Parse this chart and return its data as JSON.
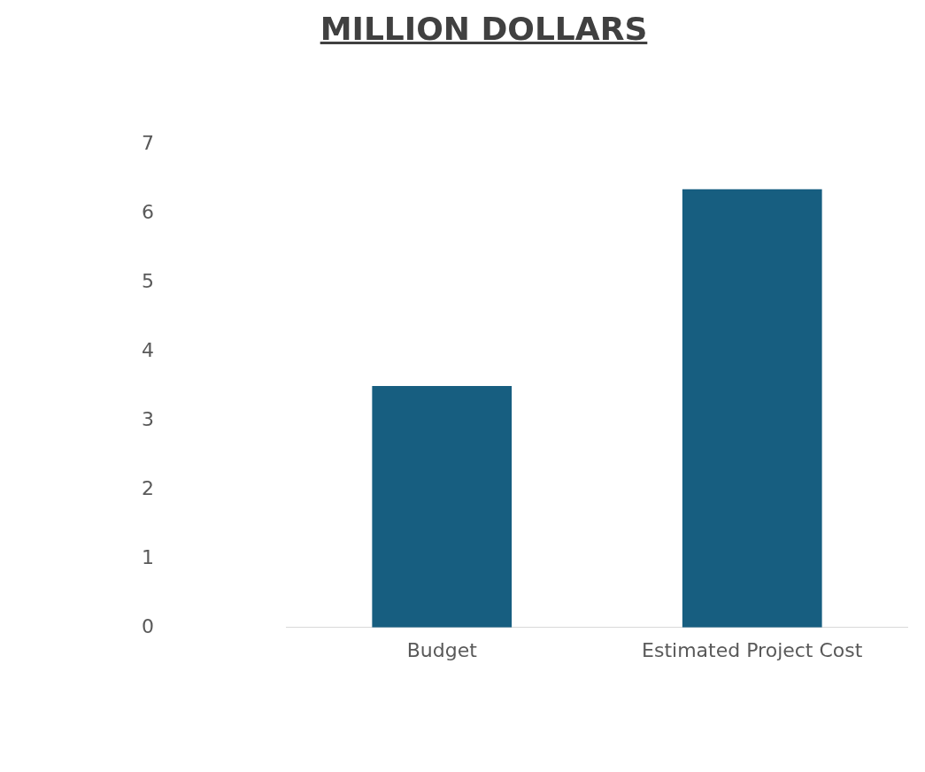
{
  "chart_data": {
    "type": "bar",
    "title": "MILLION DOLLARS",
    "categories": [
      "Budget",
      "Estimated Project Cost"
    ],
    "values": [
      3.5,
      6.35
    ],
    "color": "#175e80",
    "ylim": [
      0,
      7
    ],
    "yticks": [
      0,
      1,
      2,
      3,
      4,
      5,
      6,
      7
    ],
    "grid": false,
    "legend": false
  }
}
